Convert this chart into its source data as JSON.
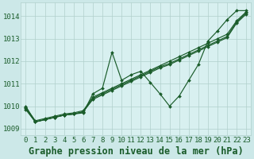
{
  "title": "Graphe pression niveau de la mer (hPa)",
  "bg_color": "#cce8e8",
  "plot_bg_color": "#d8f0f0",
  "grid_color": "#b0d0cc",
  "line_color": "#1a5c2a",
  "xlim": [
    -0.5,
    23.5
  ],
  "ylim": [
    1008.7,
    1014.6
  ],
  "yticks": [
    1009,
    1010,
    1011,
    1012,
    1013,
    1014
  ],
  "xticks": [
    0,
    1,
    2,
    3,
    4,
    5,
    6,
    7,
    8,
    9,
    10,
    11,
    12,
    13,
    14,
    15,
    16,
    17,
    18,
    19,
    20,
    21,
    22,
    23
  ],
  "series": [
    [
      1010.0,
      1009.3,
      1009.4,
      1009.5,
      1009.6,
      1009.65,
      1009.7,
      1010.55,
      1010.8,
      1012.4,
      1011.15,
      1011.4,
      1011.55,
      1011.05,
      1010.55,
      1010.0,
      1010.45,
      1011.15,
      1011.85,
      1012.9,
      1013.35,
      1013.85,
      1014.25,
      1014.25
    ],
    [
      1009.95,
      1009.35,
      1009.45,
      1009.55,
      1009.65,
      1009.7,
      1009.8,
      1010.4,
      1010.6,
      1010.8,
      1011.0,
      1011.2,
      1011.4,
      1011.6,
      1011.8,
      1012.0,
      1012.2,
      1012.4,
      1012.6,
      1012.8,
      1013.0,
      1013.2,
      1013.8,
      1014.2
    ],
    [
      1009.9,
      1009.3,
      1009.4,
      1009.5,
      1009.6,
      1009.65,
      1009.75,
      1010.35,
      1010.55,
      1010.75,
      1010.95,
      1011.15,
      1011.35,
      1011.55,
      1011.75,
      1011.9,
      1012.1,
      1012.3,
      1012.5,
      1012.7,
      1012.9,
      1013.1,
      1013.75,
      1014.15
    ],
    [
      1009.85,
      1009.3,
      1009.4,
      1009.5,
      1009.6,
      1009.65,
      1009.75,
      1010.3,
      1010.5,
      1010.7,
      1010.9,
      1011.1,
      1011.3,
      1011.5,
      1011.7,
      1011.85,
      1012.05,
      1012.25,
      1012.45,
      1012.65,
      1012.85,
      1013.05,
      1013.7,
      1014.1
    ]
  ],
  "title_fontsize": 8.5,
  "tick_fontsize": 6.5
}
